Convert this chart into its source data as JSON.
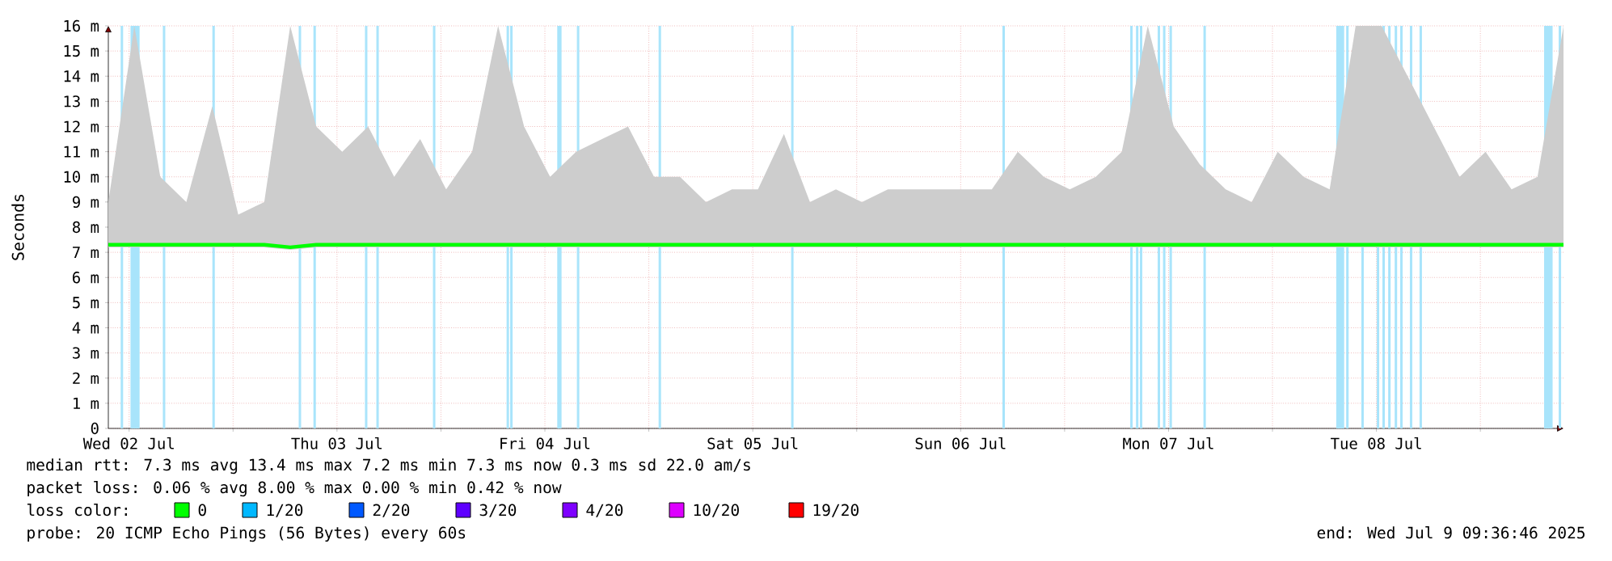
{
  "chart_data": {
    "type": "line",
    "ylabel": "Seconds",
    "legend_title": "loss color:",
    "legend": "bottom",
    "grid": true,
    "xlim": [
      "2025-07-02T09:36",
      "2025-07-09T09:36"
    ],
    "ylim": [
      0,
      16
    ],
    "yticks": [
      0,
      {
        "value": 1,
        "label": "1 m"
      },
      {
        "value": 2,
        "label": "2 m"
      },
      {
        "value": 3,
        "label": "3 m"
      },
      {
        "value": 4,
        "label": "4 m"
      },
      {
        "value": 5,
        "label": "5 m"
      },
      {
        "value": 6,
        "label": "6 m"
      },
      {
        "value": 7,
        "label": "7 m"
      },
      {
        "value": 8,
        "label": "8 m"
      },
      {
        "value": 9,
        "label": "9 m"
      },
      {
        "value": 10,
        "label": "10 m"
      },
      {
        "value": 11,
        "label": "11 m"
      },
      {
        "value": 12,
        "label": "12 m"
      },
      {
        "value": 13,
        "label": "13 m"
      },
      {
        "value": 14,
        "label": "14 m"
      },
      {
        "value": 15,
        "label": "15 m"
      },
      {
        "value": 16,
        "label": "16 m"
      }
    ],
    "xticks": [
      {
        "value": "2025-07-02T12:00",
        "label": "Wed 02 Jul"
      },
      {
        "value": "2025-07-03T00:00",
        "label": null
      },
      {
        "value": "2025-07-03T12:00",
        "label": "Thu 03 Jul"
      },
      {
        "value": "2025-07-04T00:00",
        "label": null
      },
      {
        "value": "2025-07-04T12:00",
        "label": "Fri 04 Jul"
      },
      {
        "value": "2025-07-05T00:00",
        "label": null
      },
      {
        "value": "2025-07-05T12:00",
        "label": "Sat 05 Jul"
      },
      {
        "value": "2025-07-06T00:00",
        "label": null
      },
      {
        "value": "2025-07-06T12:00",
        "label": "Sun 06 Jul"
      },
      {
        "value": "2025-07-07T00:00",
        "label": null
      },
      {
        "value": "2025-07-07T12:00",
        "label": "Mon 07 Jul"
      },
      {
        "value": "2025-07-08T00:00",
        "label": null
      },
      {
        "value": "2025-07-08T12:00",
        "label": "Tue 08 Jul"
      },
      {
        "value": "2025-07-09T00:00",
        "label": null
      }
    ],
    "x": [
      "2025-07-02T09:36",
      "2025-07-02T12:36",
      "2025-07-02T15:36",
      "2025-07-02T18:36",
      "2025-07-02T21:36",
      "2025-07-03T00:36",
      "2025-07-03T03:36",
      "2025-07-03T06:36",
      "2025-07-03T09:36",
      "2025-07-03T12:36",
      "2025-07-03T15:36",
      "2025-07-03T18:36",
      "2025-07-03T21:36",
      "2025-07-04T00:36",
      "2025-07-04T03:36",
      "2025-07-04T06:36",
      "2025-07-04T09:36",
      "2025-07-04T12:36",
      "2025-07-04T15:36",
      "2025-07-04T18:36",
      "2025-07-04T21:36",
      "2025-07-05T00:36",
      "2025-07-05T03:36",
      "2025-07-05T06:36",
      "2025-07-05T09:36",
      "2025-07-05T12:36",
      "2025-07-05T15:36",
      "2025-07-05T18:36",
      "2025-07-05T21:36",
      "2025-07-06T00:36",
      "2025-07-06T03:36",
      "2025-07-06T06:36",
      "2025-07-06T09:36",
      "2025-07-06T12:36",
      "2025-07-06T15:36",
      "2025-07-06T18:36",
      "2025-07-06T21:36",
      "2025-07-07T00:36",
      "2025-07-07T03:36",
      "2025-07-07T06:36",
      "2025-07-07T09:36",
      "2025-07-07T12:36",
      "2025-07-07T15:36",
      "2025-07-07T18:36",
      "2025-07-07T21:36",
      "2025-07-08T00:36",
      "2025-07-08T03:36",
      "2025-07-08T06:36",
      "2025-07-08T09:36",
      "2025-07-08T12:36",
      "2025-07-08T15:36",
      "2025-07-08T18:36",
      "2025-07-08T21:36",
      "2025-07-09T00:36",
      "2025-07-09T03:36",
      "2025-07-09T06:36",
      "2025-07-09T09:36"
    ],
    "series": [
      {
        "name": "0",
        "color": "#00ff00",
        "values": [
          7.3,
          7.3,
          7.3,
          7.3,
          7.3,
          7.3,
          7.3,
          7.2,
          7.3,
          7.3,
          7.3,
          7.3,
          7.3,
          7.3,
          7.3,
          7.3,
          7.3,
          7.3,
          7.3,
          7.3,
          7.3,
          7.3,
          7.3,
          7.3,
          7.3,
          7.3,
          7.3,
          7.3,
          7.3,
          7.3,
          7.3,
          7.3,
          7.3,
          7.3,
          7.3,
          7.3,
          7.3,
          7.3,
          7.3,
          7.3,
          7.3,
          7.3,
          7.3,
          7.3,
          7.3,
          7.3,
          7.3,
          7.3,
          7.3,
          7.3,
          7.3,
          7.3,
          7.3,
          7.3,
          7.3,
          7.3,
          7.3
        ],
        "lower": [
          7.2,
          7.2,
          7.2,
          7.2,
          7.2,
          7.2,
          7.2,
          7.1,
          7.2,
          7.2,
          7.2,
          7.2,
          7.2,
          7.2,
          7.2,
          7.2,
          7.2,
          7.2,
          7.2,
          7.2,
          7.2,
          7.2,
          7.2,
          7.2,
          7.2,
          7.2,
          7.2,
          7.2,
          7.2,
          7.2,
          7.2,
          7.2,
          7.2,
          7.2,
          7.2,
          7.2,
          7.2,
          7.2,
          7.2,
          7.2,
          7.2,
          7.2,
          7.2,
          7.2,
          7.2,
          7.2,
          7.2,
          7.2,
          7.2,
          7.2,
          7.2,
          7.2,
          7.2,
          7.2,
          7.2,
          7.2,
          7.2
        ],
        "upper": [
          9,
          16,
          10,
          9,
          12.8,
          8.5,
          9,
          16,
          12,
          11,
          12,
          10,
          11.5,
          9.5,
          11,
          16,
          12,
          10,
          11,
          11.5,
          12,
          10,
          10,
          9,
          9.5,
          9.5,
          11.7,
          9,
          9.5,
          9,
          9.5,
          9.5,
          9.5,
          9.5,
          9.5,
          11,
          10,
          9.5,
          10,
          11,
          16,
          12,
          10.5,
          9.5,
          9,
          11,
          10,
          9.5,
          16,
          16,
          14,
          12,
          10,
          11,
          9.5,
          10,
          16
        ]
      },
      {
        "name": "1/20",
        "color": "#00b8ff",
        "values": [
          null,
          null,
          null,
          null,
          null,
          null,
          null,
          null,
          null,
          null,
          null,
          null,
          null,
          null,
          null,
          null,
          null,
          null,
          null,
          null,
          null,
          null,
          null,
          null,
          null,
          null,
          null,
          null,
          null,
          null,
          null,
          null,
          null,
          null,
          null,
          null,
          null,
          null,
          null,
          null,
          null,
          null,
          null,
          null,
          null,
          null,
          null,
          null,
          null,
          null,
          null,
          null,
          null,
          null,
          null,
          null,
          null
        ]
      },
      {
        "name": "2/20",
        "color": "#0059ff",
        "values": [
          null,
          null,
          null,
          null,
          null,
          null,
          null,
          null,
          null,
          null,
          null,
          null,
          null,
          null,
          null,
          null,
          null,
          null,
          null,
          null,
          null,
          null,
          null,
          null,
          null,
          null,
          null,
          null,
          null,
          null,
          null,
          null,
          null,
          null,
          null,
          null,
          null,
          null,
          null,
          null,
          null,
          null,
          null,
          null,
          null,
          null,
          null,
          null,
          null,
          null,
          null,
          null,
          null,
          null,
          null,
          null,
          null
        ]
      },
      {
        "name": "3/20",
        "color": "#5e00ff",
        "values": [
          null,
          null,
          null,
          null,
          null,
          null,
          null,
          null,
          null,
          null,
          null,
          null,
          null,
          null,
          null,
          null,
          null,
          null,
          null,
          null,
          null,
          null,
          null,
          null,
          null,
          null,
          null,
          null,
          null,
          null,
          null,
          null,
          null,
          null,
          null,
          null,
          null,
          null,
          null,
          null,
          null,
          null,
          null,
          null,
          null,
          null,
          null,
          null,
          null,
          null,
          null,
          null,
          null,
          null,
          null,
          null,
          null
        ]
      },
      {
        "name": "4/20",
        "color": "#7e00ff",
        "values": [
          null,
          null,
          null,
          null,
          null,
          null,
          null,
          null,
          null,
          null,
          null,
          null,
          null,
          null,
          null,
          null,
          null,
          null,
          null,
          null,
          null,
          null,
          null,
          null,
          null,
          null,
          null,
          null,
          null,
          null,
          null,
          null,
          null,
          null,
          null,
          null,
          null,
          null,
          null,
          null,
          null,
          null,
          null,
          null,
          null,
          null,
          null,
          null,
          null,
          null,
          null,
          null,
          null,
          null,
          null,
          null,
          null
        ]
      },
      {
        "name": "10/20",
        "color": "#dd00ff",
        "values": [
          null,
          null,
          null,
          null,
          null,
          null,
          null,
          null,
          null,
          null,
          null,
          null,
          null,
          null,
          null,
          null,
          null,
          null,
          null,
          null,
          null,
          null,
          null,
          null,
          null,
          null,
          null,
          null,
          null,
          null,
          null,
          null,
          null,
          null,
          null,
          null,
          null,
          null,
          null,
          null,
          null,
          null,
          null,
          null,
          null,
          null,
          null,
          null,
          null,
          null,
          null,
          null,
          null,
          null,
          null,
          null,
          null
        ]
      },
      {
        "name": "19/20",
        "color": "#ff0000",
        "values": [
          null,
          null,
          null,
          null,
          null,
          null,
          null,
          null,
          null,
          null,
          null,
          null,
          null,
          null,
          null,
          null,
          null,
          null,
          null,
          null,
          null,
          null,
          null,
          null,
          null,
          null,
          null,
          null,
          null,
          null,
          null,
          null,
          null,
          null,
          null,
          null,
          null,
          null,
          null,
          null,
          null,
          null,
          null,
          null,
          null,
          null,
          null,
          null,
          null,
          null,
          null,
          null,
          null,
          null,
          null,
          null,
          null
        ]
      }
    ],
    "bands": [
      {
        "axis": "x",
        "from": "2025-07-02T11:05",
        "to": "2025-07-02T11:15",
        "color": "#a8e4fb"
      },
      {
        "axis": "x",
        "from": "2025-07-02T12:13",
        "to": "2025-07-02T13:09",
        "color": "#a8e4fb"
      },
      {
        "axis": "x",
        "from": "2025-07-02T15:57",
        "to": "2025-07-02T16:07",
        "color": "#a8e4fb"
      },
      {
        "axis": "x",
        "from": "2025-07-02T21:40",
        "to": "2025-07-02T21:50",
        "color": "#a8e4fb"
      },
      {
        "axis": "x",
        "from": "2025-07-03T07:38",
        "to": "2025-07-03T07:48",
        "color": "#a8e4fb"
      },
      {
        "axis": "x",
        "from": "2025-07-03T09:20",
        "to": "2025-07-03T09:30",
        "color": "#a8e4fb"
      },
      {
        "axis": "x",
        "from": "2025-07-03T15:17",
        "to": "2025-07-03T15:27",
        "color": "#a8e4fb"
      },
      {
        "axis": "x",
        "from": "2025-07-03T16:36",
        "to": "2025-07-03T16:46",
        "color": "#a8e4fb"
      },
      {
        "axis": "x",
        "from": "2025-07-03T23:08",
        "to": "2025-07-03T23:18",
        "color": "#a8e4fb"
      },
      {
        "axis": "x",
        "from": "2025-07-04T07:38",
        "to": "2025-07-04T07:48",
        "color": "#a8e4fb"
      },
      {
        "axis": "x",
        "from": "2025-07-04T08:03",
        "to": "2025-07-04T08:13",
        "color": "#a8e4fb"
      },
      {
        "axis": "x",
        "from": "2025-07-04T13:29",
        "to": "2025-07-04T13:52",
        "color": "#a8e4fb"
      },
      {
        "axis": "x",
        "from": "2025-07-04T15:45",
        "to": "2025-07-04T15:55",
        "color": "#a8e4fb"
      },
      {
        "axis": "x",
        "from": "2025-07-05T01:11",
        "to": "2025-07-05T01:21",
        "color": "#a8e4fb"
      },
      {
        "axis": "x",
        "from": "2025-07-05T16:29",
        "to": "2025-07-05T16:39",
        "color": "#a8e4fb"
      },
      {
        "axis": "x",
        "from": "2025-07-06T16:53",
        "to": "2025-07-06T17:03",
        "color": "#a8e4fb"
      },
      {
        "axis": "x",
        "from": "2025-07-07T07:38",
        "to": "2025-07-07T07:48",
        "color": "#a8e4fb"
      },
      {
        "axis": "x",
        "from": "2025-07-07T08:18",
        "to": "2025-07-07T08:28",
        "color": "#a8e4fb"
      },
      {
        "axis": "x",
        "from": "2025-07-07T08:45",
        "to": "2025-07-07T08:55",
        "color": "#a8e4fb"
      },
      {
        "axis": "x",
        "from": "2025-07-07T10:48",
        "to": "2025-07-07T10:58",
        "color": "#a8e4fb"
      },
      {
        "axis": "x",
        "from": "2025-07-07T11:25",
        "to": "2025-07-07T11:35",
        "color": "#a8e4fb"
      },
      {
        "axis": "x",
        "from": "2025-07-07T12:10",
        "to": "2025-07-07T12:20",
        "color": "#a8e4fb"
      },
      {
        "axis": "x",
        "from": "2025-07-07T16:05",
        "to": "2025-07-07T16:15",
        "color": "#a8e4fb"
      },
      {
        "axis": "x",
        "from": "2025-07-08T07:25",
        "to": "2025-07-08T08:13",
        "color": "#a8e4fb"
      },
      {
        "axis": "x",
        "from": "2025-07-08T08:34",
        "to": "2025-07-08T08:44",
        "color": "#a8e4fb"
      },
      {
        "axis": "x",
        "from": "2025-07-08T10:19",
        "to": "2025-07-08T10:29",
        "color": "#a8e4fb"
      },
      {
        "axis": "x",
        "from": "2025-07-08T12:06",
        "to": "2025-07-08T12:16",
        "color": "#a8e4fb"
      },
      {
        "axis": "x",
        "from": "2025-07-08T12:45",
        "to": "2025-07-08T12:55",
        "color": "#a8e4fb"
      },
      {
        "axis": "x",
        "from": "2025-07-08T13:25",
        "to": "2025-07-08T13:35",
        "color": "#a8e4fb"
      },
      {
        "axis": "x",
        "from": "2025-07-08T14:10",
        "to": "2025-07-08T14:20",
        "color": "#a8e4fb"
      },
      {
        "axis": "x",
        "from": "2025-07-08T14:48",
        "to": "2025-07-08T14:58",
        "color": "#a8e4fb"
      },
      {
        "axis": "x",
        "from": "2025-07-08T15:55",
        "to": "2025-07-08T16:05",
        "color": "#a8e4fb"
      },
      {
        "axis": "x",
        "from": "2025-07-08T17:02",
        "to": "2025-07-08T17:12",
        "color": "#a8e4fb"
      },
      {
        "axis": "x",
        "from": "2025-07-09T07:25",
        "to": "2025-07-09T08:17",
        "color": "#a8e4fb"
      },
      {
        "axis": "x",
        "from": "2025-07-09T09:06",
        "to": "2025-07-09T09:16",
        "color": "#a8e4fb"
      }
    ],
    "annotations": [
      "median rtt:  7.3 ms avg  13.4 ms max  7.2 ms min  7.3 ms now  0.3 ms sd  22.0   am/s",
      "packet loss: 0.06 % avg  8.00 % max  0.00 % min  0.42 % now",
      "probe:       20 ICMP Echo Pings (56 Bytes) every 60s",
      "end: Wed Jul  9 09:36:46 2025"
    ]
  }
}
